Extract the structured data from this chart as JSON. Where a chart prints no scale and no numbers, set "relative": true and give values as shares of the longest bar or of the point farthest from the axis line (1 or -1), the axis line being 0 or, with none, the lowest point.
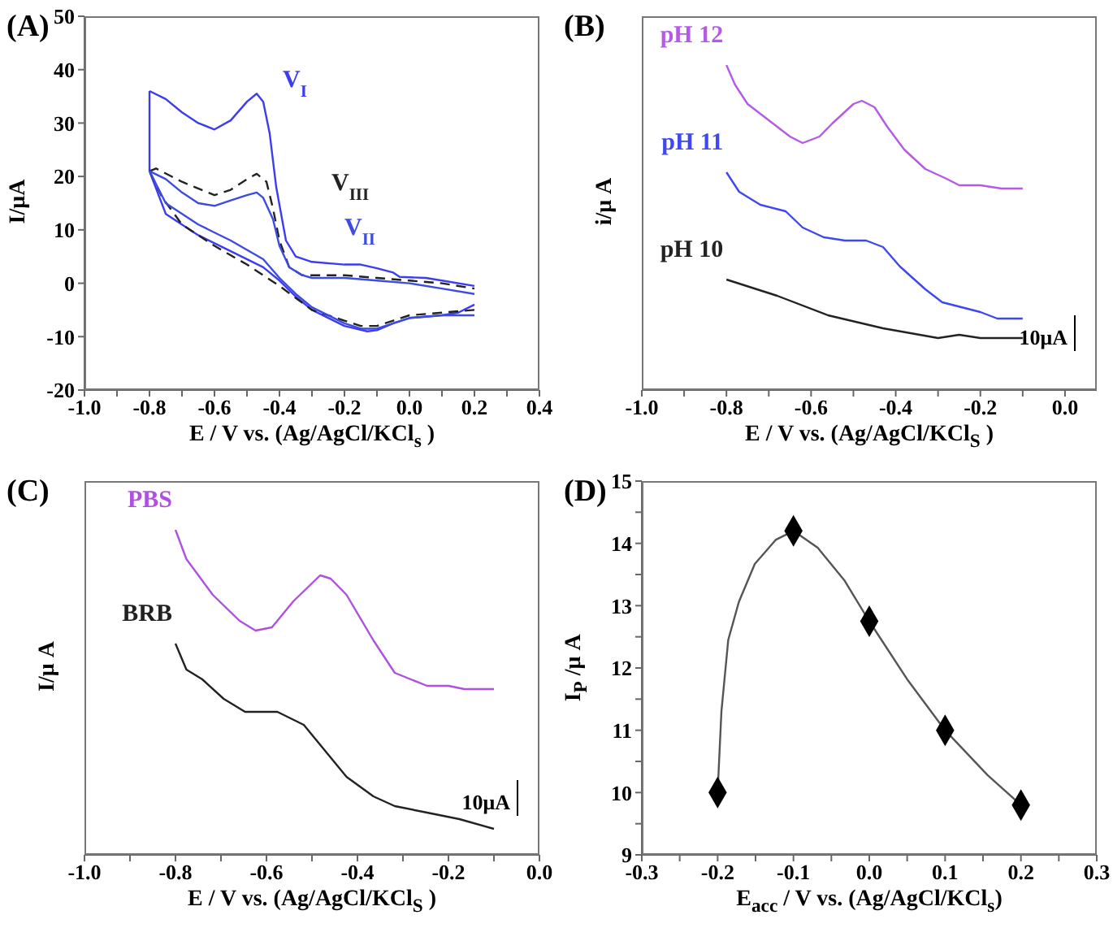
{
  "chart_data": [
    {
      "type": "line",
      "title": "(A)",
      "xlabel": "E / V vs. (Ag/AgCl/KCl$_{s}$ )",
      "ylabel": "I/μA",
      "xlim": [
        -1.0,
        0.4
      ],
      "xticks": [
        {
          "value": -1.0,
          "label": "-1.0"
        },
        {
          "value": -0.9,
          "label": null
        },
        -0.8,
        {
          "value": -0.7,
          "label": null
        },
        -0.6,
        {
          "value": -0.5,
          "label": null
        },
        -0.4,
        {
          "value": -0.3,
          "label": null
        },
        -0.2,
        {
          "value": -0.1,
          "label": null
        },
        {
          "value": 0,
          "label": "0.0"
        },
        {
          "value": 0.1,
          "label": null
        },
        0.2,
        {
          "value": 0.3,
          "label": null
        },
        0.4
      ],
      "ylim": [
        -20,
        50
      ],
      "yticks": [
        -20,
        -10,
        0,
        10,
        20,
        30,
        40,
        50
      ],
      "series": [
        {
          "name": "V$_{I}$",
          "color": "#3c3cf0",
          "line_style": "solid",
          "x": [
            -0.8,
            -0.75,
            -0.7,
            -0.65,
            -0.6,
            -0.55,
            -0.5,
            -0.47,
            -0.45,
            -0.43,
            -0.41,
            -0.38,
            -0.35,
            -0.3,
            -0.2,
            -0.15,
            -0.1,
            -0.05,
            -0.03,
            0.05,
            0.1,
            0.2
          ],
          "values": [
            36,
            34.5,
            32,
            30,
            28.8,
            30.5,
            34,
            35.5,
            34,
            28,
            18,
            8,
            5,
            4,
            3.5,
            3.5,
            2.8,
            2,
            1.2,
            1,
            0.5,
            -0.5
          ]
        },
        {
          "color": "#3c3cf0",
          "line_style": "solid",
          "x": [
            0.2,
            0.15,
            0.1,
            0,
            -0.05,
            -0.1,
            -0.13,
            -0.2,
            -0.3,
            -0.35,
            -0.4,
            -0.45,
            -0.55,
            -0.65,
            -0.75,
            -0.8,
            -0.8
          ],
          "values": [
            -4,
            -5.5,
            -6,
            -6.5,
            -7.5,
            -8.8,
            -9,
            -8,
            -5,
            -2.5,
            0.5,
            3,
            6,
            9,
            13,
            21,
            36
          ]
        },
        {
          "name": "V$_{III}$",
          "color": "#222222",
          "line_style": "dashed",
          "x": [
            -0.8,
            -0.78,
            -0.7,
            -0.6,
            -0.55,
            -0.5,
            -0.47,
            -0.44,
            -0.42,
            -0.4,
            -0.37,
            -0.33,
            -0.2,
            -0.1,
            0,
            0.1,
            0.2
          ],
          "values": [
            21,
            21.5,
            19,
            16.5,
            17.5,
            19.5,
            20.5,
            19,
            14,
            8,
            3,
            1.5,
            1.5,
            1,
            0.5,
            0,
            -1
          ]
        },
        {
          "color": "#222222",
          "line_style": "dashed",
          "x": [
            0.2,
            0.1,
            0,
            -0.05,
            -0.1,
            -0.15,
            -0.2,
            -0.3,
            -0.4,
            -0.5,
            -0.6,
            -0.7,
            -0.76,
            -0.8
          ],
          "values": [
            -5,
            -5.5,
            -6,
            -7,
            -8,
            -8,
            -7,
            -5,
            -0.5,
            3.5,
            7,
            11,
            16,
            21
          ]
        },
        {
          "name": "V$_{II}$",
          "color": "#3c4ce0",
          "line_style": "solid",
          "x": [
            -0.8,
            -0.75,
            -0.7,
            -0.65,
            -0.6,
            -0.55,
            -0.5,
            -0.47,
            -0.45,
            -0.42,
            -0.4,
            -0.37,
            -0.33,
            -0.3,
            -0.2,
            -0.1,
            0,
            0.1,
            0.2
          ],
          "values": [
            21,
            19.5,
            17,
            15,
            14.5,
            15.5,
            16.5,
            17,
            16,
            12,
            7,
            3,
            1.5,
            1,
            1,
            0.5,
            0,
            -1,
            -2
          ]
        },
        {
          "color": "#3c4ce0",
          "line_style": "solid",
          "x": [
            0.2,
            0.1,
            0,
            -0.05,
            -0.1,
            -0.15,
            -0.2,
            -0.3,
            -0.35,
            -0.4,
            -0.45,
            -0.55,
            -0.65,
            -0.75,
            -0.8
          ],
          "values": [
            -6,
            -6,
            -6.5,
            -7.5,
            -8.5,
            -8.5,
            -7.5,
            -4.5,
            -2,
            1,
            4.5,
            8,
            11,
            15,
            21
          ]
        }
      ]
    },
    {
      "type": "line",
      "title": "(B)",
      "xlabel": "E / V vs. (Ag/AgCl/KCl$_{S}$ )",
      "ylabel": "i/μ A",
      "relative": true,
      "annotations": [
        "10μA"
      ],
      "xlim": [
        -1.0,
        0.075
      ],
      "xticks": [
        {
          "value": -1.0,
          "label": "-1.0"
        },
        {
          "value": -0.9,
          "label": null
        },
        -0.8,
        {
          "value": -0.7,
          "label": null
        },
        -0.6,
        {
          "value": -0.5,
          "label": null
        },
        -0.4,
        {
          "value": -0.3,
          "label": null
        },
        -0.2,
        {
          "value": -0.1,
          "label": null
        },
        {
          "value": 0,
          "label": "0.0"
        }
      ],
      "series": [
        {
          "name": "pH 12",
          "color": "#b55ae6",
          "x": [
            -0.8,
            -0.78,
            -0.75,
            -0.7,
            -0.65,
            -0.62,
            -0.58,
            -0.55,
            -0.5,
            -0.48,
            -0.45,
            -0.42,
            -0.38,
            -0.33,
            -0.28,
            -0.25,
            -0.2,
            -0.15,
            -0.1
          ],
          "values": [
            1,
            0.94,
            0.88,
            0.83,
            0.78,
            0.76,
            0.78,
            0.82,
            0.88,
            0.89,
            0.87,
            0.81,
            0.74,
            0.68,
            0.65,
            0.63,
            0.63,
            0.62,
            0.62
          ]
        },
        {
          "name": "pH 11",
          "color": "#3f48f0",
          "x": [
            -0.8,
            -0.77,
            -0.72,
            -0.66,
            -0.62,
            -0.57,
            -0.52,
            -0.47,
            -0.43,
            -0.39,
            -0.33,
            -0.29,
            -0.2,
            -0.16,
            -0.13,
            -0.1
          ],
          "values": [
            0.67,
            0.61,
            0.57,
            0.55,
            0.5,
            0.47,
            0.46,
            0.46,
            0.44,
            0.38,
            0.31,
            0.27,
            0.24,
            0.22,
            0.22,
            0.22
          ]
        },
        {
          "name": "pH 10",
          "color": "#222222",
          "x": [
            -0.8,
            -0.68,
            -0.56,
            -0.43,
            -0.3,
            -0.25,
            -0.2,
            -0.1
          ],
          "values": [
            0.34,
            0.29,
            0.23,
            0.19,
            0.16,
            0.17,
            0.16,
            0.16
          ]
        }
      ]
    },
    {
      "type": "line",
      "title": "(C)",
      "xlabel": "E / V vs. (Ag/AgCl/KCl$_{S}$ )",
      "ylabel": "I/μ A",
      "relative": true,
      "annotations": [
        "10μA"
      ],
      "xlim": [
        -1.0,
        0.0
      ],
      "xticks": [
        {
          "value": -1.0,
          "label": "-1.0"
        },
        {
          "value": -0.9,
          "label": null
        },
        -0.8,
        {
          "value": -0.7,
          "label": null
        },
        -0.6,
        {
          "value": -0.5,
          "label": null
        },
        -0.4,
        {
          "value": -0.3,
          "label": null
        },
        -0.2,
        {
          "value": -0.1,
          "label": null
        },
        {
          "value": 0,
          "label": "0.0"
        }
      ],
      "series": [
        {
          "name": "PBS",
          "color": "#b050e0",
          "x": [
            -0.8,
            -0.776,
            -0.718,
            -0.659,
            -0.624,
            -0.588,
            -0.541,
            -0.482,
            -0.459,
            -0.424,
            -0.365,
            -0.318,
            -0.247,
            -0.2,
            -0.165,
            -0.1
          ],
          "values": [
            1,
            0.91,
            0.8,
            0.72,
            0.69,
            0.7,
            0.78,
            0.86,
            0.85,
            0.8,
            0.66,
            0.56,
            0.52,
            0.52,
            0.51,
            0.51
          ]
        },
        {
          "name": "BRB",
          "color": "#222222",
          "x": [
            -0.8,
            -0.776,
            -0.741,
            -0.694,
            -0.647,
            -0.576,
            -0.518,
            -0.471,
            -0.424,
            -0.365,
            -0.318,
            -0.247,
            -0.176,
            -0.1
          ],
          "values": [
            0.65,
            0.57,
            0.54,
            0.48,
            0.44,
            0.44,
            0.4,
            0.32,
            0.24,
            0.18,
            0.15,
            0.13,
            0.11,
            0.08
          ]
        }
      ]
    },
    {
      "type": "scatter",
      "title": "(D)",
      "xlabel": "E$_{acc}$ / V vs. (Ag/AgCl/KCl$_{s}$)",
      "ylabel": "I$_{P}$ /μ A",
      "xlim": [
        -0.3,
        0.3
      ],
      "xticks": [
        -0.3,
        {
          "value": -0.25,
          "label": null
        },
        -0.2,
        {
          "value": -0.15,
          "label": null
        },
        -0.1,
        {
          "value": -0.05,
          "label": null
        },
        {
          "value": 0,
          "label": "0.0"
        },
        {
          "value": 0.05,
          "label": null
        },
        0.1,
        {
          "value": 0.15,
          "label": null
        },
        0.2,
        {
          "value": 0.25,
          "label": null
        },
        0.3
      ],
      "ylim": [
        9,
        15
      ],
      "yticks": [
        9,
        {
          "value": 9.5,
          "label": null
        },
        10,
        {
          "value": 10.5,
          "label": null
        },
        11,
        {
          "value": 11.5,
          "label": null
        },
        12,
        {
          "value": 12.5,
          "label": null
        },
        13,
        {
          "value": 13.5,
          "label": null
        },
        14,
        {
          "value": 14.5,
          "label": null
        },
        15
      ],
      "series": [
        {
          "type": "line",
          "color": "#555555",
          "x": [
            -0.2,
            -0.195,
            -0.186,
            -0.172,
            -0.151,
            -0.123,
            -0.1,
            -0.068,
            -0.033,
            0,
            0.051,
            0.1,
            0.156,
            0.2
          ],
          "values": [
            10,
            11.3,
            12.45,
            13.06,
            13.67,
            14.06,
            14.2,
            13.93,
            13.41,
            12.75,
            11.8,
            11,
            10.28,
            9.8
          ]
        },
        {
          "color": "#000000",
          "marker": "diamond",
          "x": [
            -0.2,
            -0.1,
            0,
            0.1,
            0.2
          ],
          "values": [
            10,
            14.2,
            12.75,
            11,
            9.8
          ]
        }
      ]
    }
  ]
}
